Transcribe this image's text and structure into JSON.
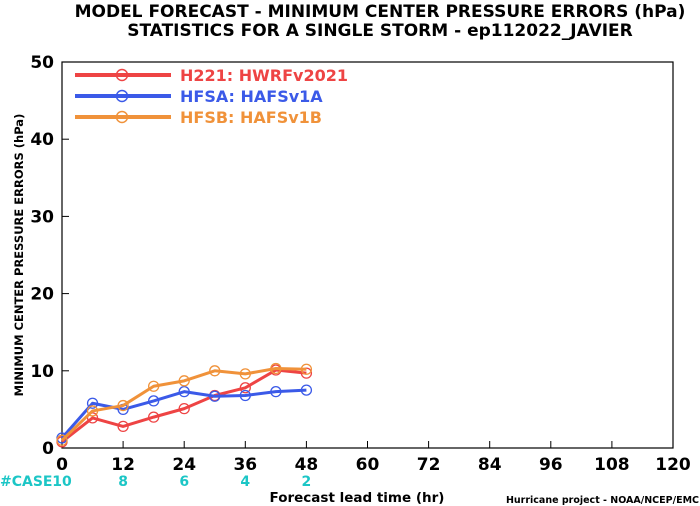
{
  "chart_data": {
    "type": "line",
    "title_line1": "MODEL FORECAST - MINIMUM CENTER PRESSURE ERRORS (hPa)",
    "title_line2": "STATISTICS FOR A SINGLE STORM - ep112022_JAVIER",
    "ylabel": "MINIMUM CENTER PRESSURE ERRORS (hPa)",
    "xlabel": "Forecast lead time (hr)",
    "credit": "Hurricane project - NOAA/NCEP/EMC",
    "xlim": [
      0,
      120
    ],
    "ylim": [
      0,
      50
    ],
    "x_ticks": [
      0,
      12,
      24,
      36,
      48,
      60,
      72,
      84,
      96,
      108,
      120
    ],
    "y_ticks": [
      0,
      10,
      20,
      30,
      40,
      50
    ],
    "grid": false,
    "legend_position": "top-left",
    "case_label": "#CASE",
    "cases": [
      {
        "x": 0,
        "count": "10"
      },
      {
        "x": 12,
        "count": "8"
      },
      {
        "x": 24,
        "count": "6"
      },
      {
        "x": 36,
        "count": "4"
      },
      {
        "x": 48,
        "count": "2"
      }
    ],
    "series": [
      {
        "name": "H221: HWRFv2021",
        "color": "#ee4444",
        "x": [
          0,
          6,
          12,
          18,
          24,
          30,
          36,
          42,
          48
        ],
        "values": [
          0.8,
          3.9,
          2.8,
          4.0,
          5.1,
          6.8,
          7.8,
          10.1,
          9.7
        ]
      },
      {
        "name": "HFSA: HAFSv1A",
        "color": "#3b5ae8",
        "x": [
          0,
          6,
          12,
          18,
          24,
          30,
          36,
          42,
          48
        ],
        "values": [
          1.3,
          5.8,
          5.0,
          6.1,
          7.3,
          6.7,
          6.8,
          7.3,
          7.5
        ]
      },
      {
        "name": "HFSB: HAFSv1B",
        "color": "#f0923a",
        "x": [
          0,
          6,
          12,
          18,
          24,
          30,
          36,
          42,
          48
        ],
        "values": [
          1.0,
          4.8,
          5.5,
          8.0,
          8.7,
          10.0,
          9.6,
          10.3,
          10.2
        ]
      }
    ]
  }
}
